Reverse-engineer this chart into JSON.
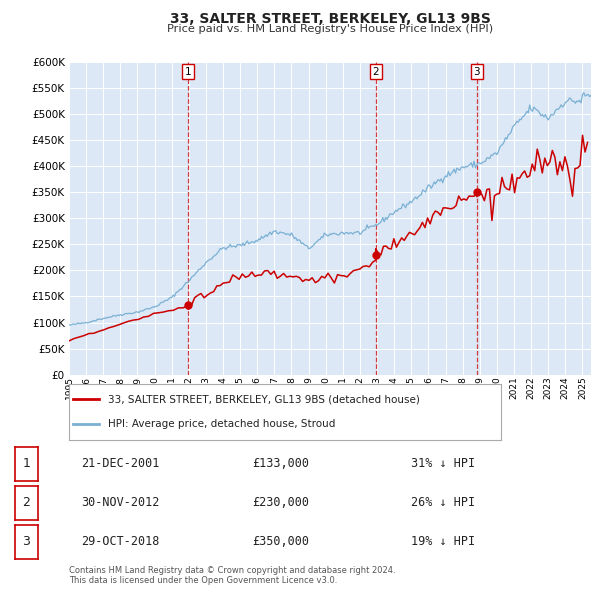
{
  "title": "33, SALTER STREET, BERKELEY, GL13 9BS",
  "subtitle": "Price paid vs. HM Land Registry's House Price Index (HPI)",
  "background_color": "#ffffff",
  "plot_bg_color": "#dce8f5",
  "grid_color": "#ffffff",
  "ylim": [
    0,
    600000
  ],
  "yticks": [
    0,
    50000,
    100000,
    150000,
    200000,
    250000,
    300000,
    350000,
    400000,
    450000,
    500000,
    550000,
    600000
  ],
  "xlim_start": 1995.0,
  "xlim_end": 2025.5,
  "xtick_years": [
    1995,
    1996,
    1997,
    1998,
    1999,
    2000,
    2001,
    2002,
    2003,
    2004,
    2005,
    2006,
    2007,
    2008,
    2009,
    2010,
    2011,
    2012,
    2013,
    2014,
    2015,
    2016,
    2017,
    2018,
    2019,
    2020,
    2021,
    2022,
    2023,
    2024,
    2025
  ],
  "sale_color": "#cc0000",
  "hpi_color": "#7ab0d4",
  "transactions": [
    {
      "num": 1,
      "date": "21-DEC-2001",
      "x": 2001.97,
      "price": 133000,
      "pct": "31% ↓ HPI"
    },
    {
      "num": 2,
      "date": "30-NOV-2012",
      "x": 2012.92,
      "price": 230000,
      "pct": "26% ↓ HPI"
    },
    {
      "num": 3,
      "date": "29-OCT-2018",
      "x": 2018.83,
      "price": 350000,
      "pct": "19% ↓ HPI"
    }
  ],
  "footer": "Contains HM Land Registry data © Crown copyright and database right 2024.\nThis data is licensed under the Open Government Licence v3.0.",
  "legend_label1": "33, SALTER STREET, BERKELEY, GL13 9BS (detached house)",
  "legend_label2": "HPI: Average price, detached house, Stroud",
  "hpi_base_values": {
    "1995": 95000,
    "1996": 100000,
    "1997": 108000,
    "1998": 115000,
    "1999": 120000,
    "2000": 130000,
    "2001": 148000,
    "2002": 180000,
    "2003": 215000,
    "2004": 243000,
    "2005": 248000,
    "2006": 258000,
    "2007": 275000,
    "2008": 268000,
    "2009": 242000,
    "2010": 268000,
    "2011": 272000,
    "2012": 272000,
    "2013": 288000,
    "2014": 312000,
    "2015": 332000,
    "2016": 358000,
    "2017": 382000,
    "2018": 398000,
    "2019": 405000,
    "2020": 425000,
    "2021": 475000,
    "2022": 512000,
    "2023": 492000,
    "2024": 525000
  }
}
